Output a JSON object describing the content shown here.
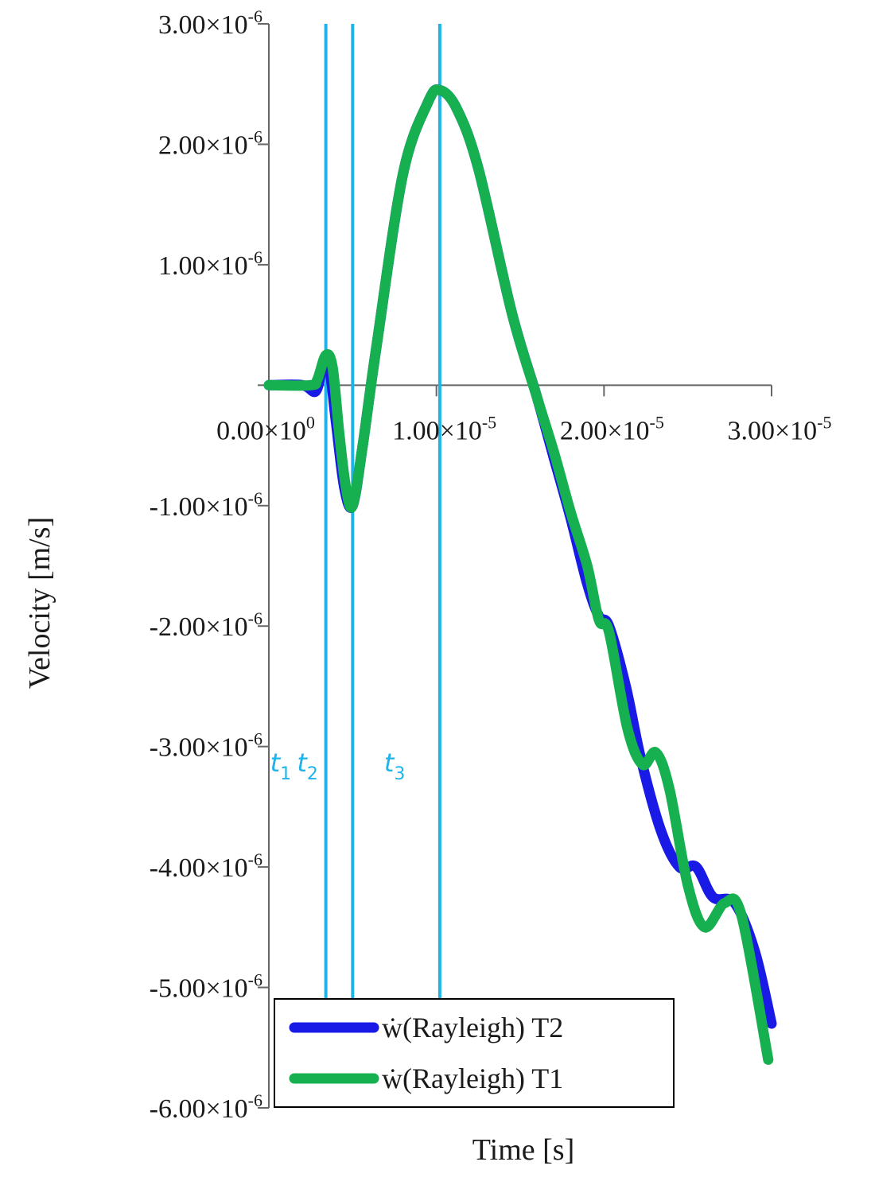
{
  "chart_data": {
    "type": "line",
    "xlabel": "Time [s]",
    "ylabel": "Velocity [m/s]",
    "xlim": [
      0,
      3e-05
    ],
    "ylim": [
      -6e-06,
      3e-06
    ],
    "x_ticks": [
      {
        "value": 0,
        "mant": "0.00",
        "exp": "0"
      },
      {
        "value": 1e-05,
        "mant": "1.00",
        "exp": "-5"
      },
      {
        "value": 2e-05,
        "mant": "2.00",
        "exp": "-5"
      },
      {
        "value": 3e-05,
        "mant": "3.00",
        "exp": "-5"
      }
    ],
    "y_ticks": [
      {
        "value": 3e-06,
        "mant": "3.00",
        "exp": "-6"
      },
      {
        "value": 2e-06,
        "mant": "2.00",
        "exp": "-6"
      },
      {
        "value": 1e-06,
        "mant": "1.00",
        "exp": "-6"
      },
      {
        "value": -1e-06,
        "mant": "-1.00",
        "exp": "-6"
      },
      {
        "value": -2e-06,
        "mant": "-2.00",
        "exp": "-6"
      },
      {
        "value": -3e-06,
        "mant": "-3.00",
        "exp": "-6"
      },
      {
        "value": -4e-06,
        "mant": "-4.00",
        "exp": "-6"
      },
      {
        "value": -5e-06,
        "mant": "-5.00",
        "exp": "-6"
      },
      {
        "value": -6e-06,
        "mant": "-6.00",
        "exp": "-6"
      }
    ],
    "markers": [
      {
        "label": "t",
        "sub": "1",
        "x": 3.4e-06
      },
      {
        "label": "t",
        "sub": "2",
        "x": 5e-06
      },
      {
        "label": "t",
        "sub": "3",
        "x": 1.02e-05
      }
    ],
    "marker_color": "#1eb4ea",
    "series": [
      {
        "name": "ẇ(Rayleigh) T2",
        "color": "#1a1ae6",
        "x": [
          0,
          2e-06,
          2.8e-06,
          3.2e-06,
          3.6e-06,
          4e-06,
          4.5e-06,
          5e-06,
          5.6e-06,
          6.4e-06,
          8e-06,
          9.5e-06,
          1.02e-05,
          1.12e-05,
          1.25e-05,
          1.45e-05,
          1.6e-05,
          1.7e-05,
          1.8e-05,
          1.9e-05,
          1.97e-05,
          2.03e-05,
          2.13e-05,
          2.22e-05,
          2.34e-05,
          2.45e-05,
          2.55e-05,
          2.65e-05,
          2.78e-05,
          2.9e-05,
          3e-05
        ],
        "y": [
          0,
          0,
          -5e-08,
          1.5e-07,
          1.5e-07,
          -3e-07,
          -8.5e-07,
          -1e-06,
          -5e-07,
          3e-07,
          1.75e-06,
          2.35e-06,
          2.45e-06,
          2.3e-06,
          1.8e-06,
          6e-07,
          -1e-07,
          -6e-07,
          -1.1e-06,
          -1.65e-06,
          -1.92e-06,
          -2e-06,
          -2.5e-06,
          -3.1e-06,
          -3.7e-06,
          -4e-06,
          -4e-06,
          -4.25e-06,
          -4.3e-06,
          -4.7e-06,
          -5.3e-06
        ]
      },
      {
        "name": "ẇ(Rayleigh) T1",
        "color": "#17b050",
        "x": [
          0,
          2.5e-06,
          2.9e-06,
          3.4e-06,
          3.8e-06,
          4.2e-06,
          4.6e-06,
          5e-06,
          5.6e-06,
          6.4e-06,
          8e-06,
          9.5e-06,
          1.02e-05,
          1.12e-05,
          1.25e-05,
          1.45e-05,
          1.6e-05,
          1.7e-05,
          1.8e-05,
          1.9e-05,
          1.97e-05,
          2.03e-05,
          2.14e-05,
          2.23e-05,
          2.31e-05,
          2.39e-05,
          2.5e-05,
          2.6e-05,
          2.72e-05,
          2.82e-05,
          2.98e-05
        ],
        "y": [
          0,
          0,
          5e-08,
          2.5e-07,
          1.5e-07,
          -4e-07,
          -8.5e-07,
          -1e-06,
          -5e-07,
          3e-07,
          1.75e-06,
          2.35e-06,
          2.45e-06,
          2.3e-06,
          1.8e-06,
          6e-07,
          -1e-07,
          -5.5e-07,
          -1.05e-06,
          -1.5e-06,
          -1.95e-06,
          -2.05e-06,
          -2.85e-06,
          -3.15e-06,
          -3.05e-06,
          -3.35e-06,
          -4.15e-06,
          -4.5e-06,
          -4.3e-06,
          -4.4e-06,
          -5.6e-06
        ]
      }
    ],
    "legend": {
      "position": "bottom-left"
    },
    "grid": false
  }
}
